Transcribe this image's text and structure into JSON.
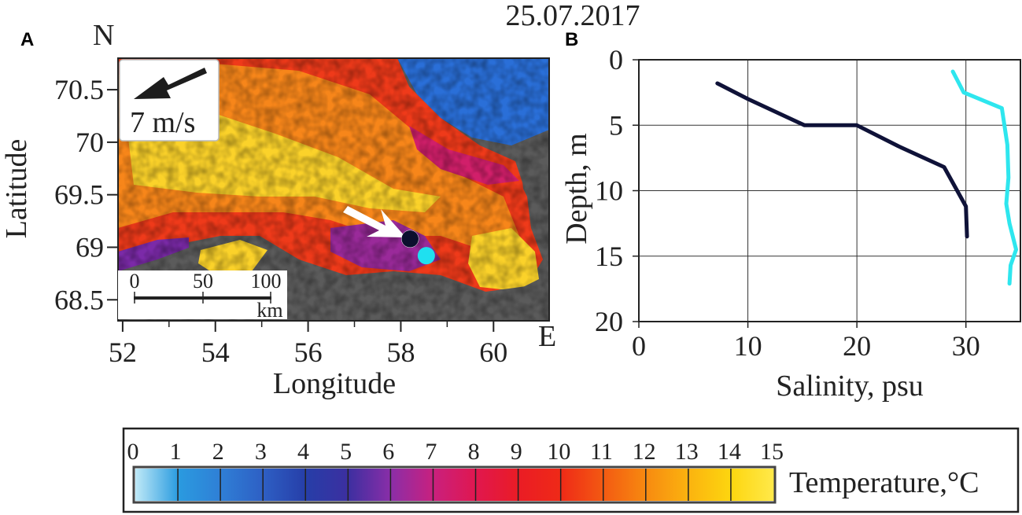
{
  "date_title": "25.07.2017",
  "panel_a": {
    "letter": "A",
    "north_label": "N",
    "east_label": "E",
    "wind_label": "7 m/s",
    "scale_bar": {
      "ticks": [
        "0",
        "50",
        "100"
      ],
      "unit": "km"
    },
    "colors": {
      "land": "#5b5b5b",
      "cold_water": "#2a6fd8",
      "station_dark": "#0b0f2e",
      "station_cyan": "#1fe0f0",
      "arrow": "#ffffff"
    }
  },
  "panel_b": {
    "letter": "B",
    "colors": {
      "dark_profile": "#0f1238",
      "cyan_profile": "#2ee6ee"
    }
  },
  "chart_data": [
    {
      "type": "heatmap",
      "panel": "A",
      "xlabel": "Longitude",
      "ylabel": "Latitude",
      "xlim": [
        51.9,
        61.2
      ],
      "ylim": [
        68.3,
        70.8
      ],
      "x_ticks": [
        "52",
        "54",
        "56",
        "58",
        "60"
      ],
      "y_ticks": [
        "68.5",
        "69",
        "69.5",
        "70",
        "70.5"
      ],
      "x_tick_values": [
        52,
        54,
        56,
        58,
        60
      ],
      "y_tick_values": [
        68.5,
        69,
        69.5,
        70,
        70.5
      ],
      "stations": [
        {
          "name": "dark",
          "lon": 58.2,
          "lat": 69.08
        },
        {
          "name": "cyan",
          "lon": 58.55,
          "lat": 68.92
        }
      ],
      "wind_direction": "toward south-west",
      "grid": false
    },
    {
      "type": "line",
      "panel": "B",
      "xlabel": "Salinity, psu",
      "ylabel": "Depth, m",
      "xlim": [
        0,
        35
      ],
      "ylim": [
        20,
        0
      ],
      "x_ticks": [
        "0",
        "10",
        "20",
        "30"
      ],
      "y_ticks": [
        "0",
        "5",
        "10",
        "15",
        "20"
      ],
      "x_tick_values": [
        0,
        10,
        20,
        30
      ],
      "y_tick_values": [
        0,
        5,
        10,
        15,
        20
      ],
      "grid": true,
      "series": [
        {
          "x": [
            7.2,
            10.0,
            15.2,
            20.0,
            23.8,
            28.0,
            30.0,
            30.1
          ],
          "y": [
            1.8,
            3.0,
            5.0,
            5.0,
            6.6,
            8.2,
            11.2,
            13.5
          ]
        },
        {
          "x": [
            28.8,
            29.8,
            33.3,
            33.8,
            33.9,
            33.7,
            34.0,
            34.6,
            34.1,
            34.0
          ],
          "y": [
            0.9,
            2.5,
            3.7,
            6.5,
            9.0,
            11.0,
            12.5,
            14.5,
            15.7,
            17.1
          ]
        }
      ]
    },
    {
      "type": "heatmap",
      "panel": "colorbar",
      "label": "Temperature,°C",
      "ticks": [
        "0",
        "1",
        "2",
        "3",
        "4",
        "5",
        "6",
        "7",
        "8",
        "9",
        "10",
        "11",
        "12",
        "13",
        "14",
        "15"
      ],
      "range": [
        0,
        15
      ],
      "colors": [
        "#bfe9f7",
        "#2a9be0",
        "#2f7fd6",
        "#2e5fc4",
        "#263ea8",
        "#3c2fa0",
        "#8a2ea8",
        "#c9207e",
        "#e0174f",
        "#ea1c25",
        "#ef2a17",
        "#f35a12",
        "#f78a10",
        "#fbb30f",
        "#fdd60f",
        "#ffe94a"
      ]
    }
  ]
}
